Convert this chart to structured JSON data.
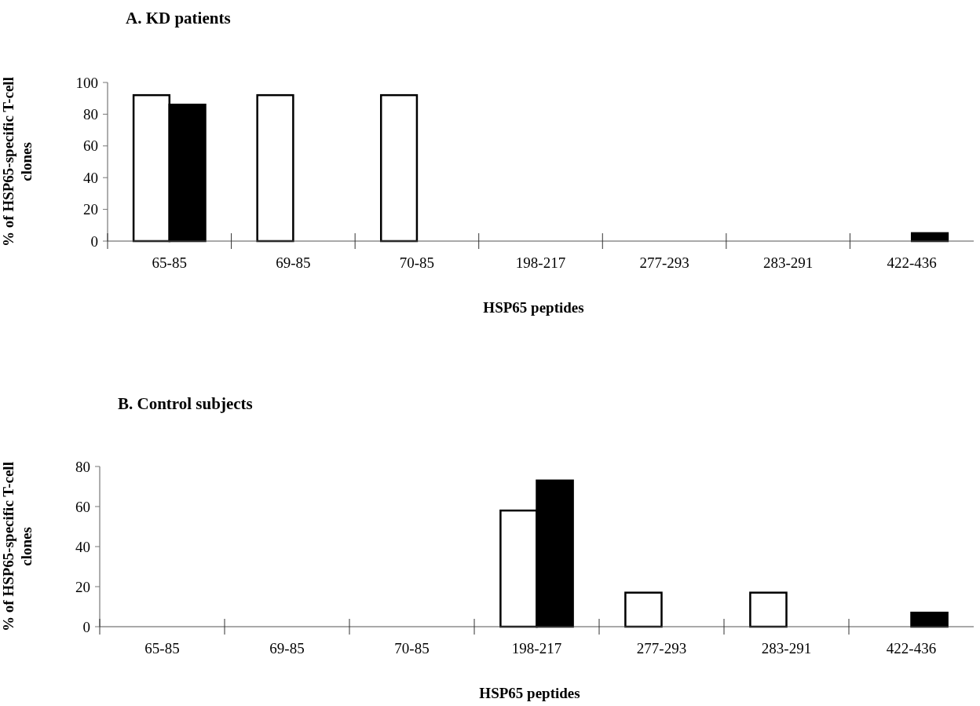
{
  "chart_data": [
    {
      "type": "bar",
      "title": "A. KD patients",
      "xlabel": "HSP65 peptides",
      "ylabel": "% of HSP65-specific T-cell clones",
      "categories": [
        "65-85",
        "69-85",
        "70-85",
        "198-217",
        "277-293",
        "283-291",
        "422-436"
      ],
      "series": [
        {
          "color": "#ffffff",
          "values": [
            92,
            92,
            92,
            0,
            0,
            0,
            0
          ]
        },
        {
          "color": "#000000",
          "values": [
            86,
            0,
            0,
            0,
            0,
            0,
            5
          ]
        }
      ],
      "ylim": [
        0,
        100
      ],
      "yticks": [
        0,
        20,
        40,
        60,
        80,
        100
      ],
      "grid": false
    },
    {
      "type": "bar",
      "title": "B. Control subjects",
      "xlabel": "HSP65 peptides",
      "ylabel": "% of HSP65-specific T-cell clones",
      "categories": [
        "65-85",
        "69-85",
        "70-85",
        "198-217",
        "277-293",
        "283-291",
        "422-436"
      ],
      "series": [
        {
          "color": "#ffffff",
          "values": [
            0,
            0,
            0,
            58,
            17,
            17,
            0
          ]
        },
        {
          "color": "#000000",
          "values": [
            0,
            0,
            0,
            73,
            0,
            0,
            7
          ]
        }
      ],
      "ylim": [
        0,
        80
      ],
      "yticks": [
        0,
        20,
        40,
        60,
        80
      ],
      "grid": false
    }
  ]
}
